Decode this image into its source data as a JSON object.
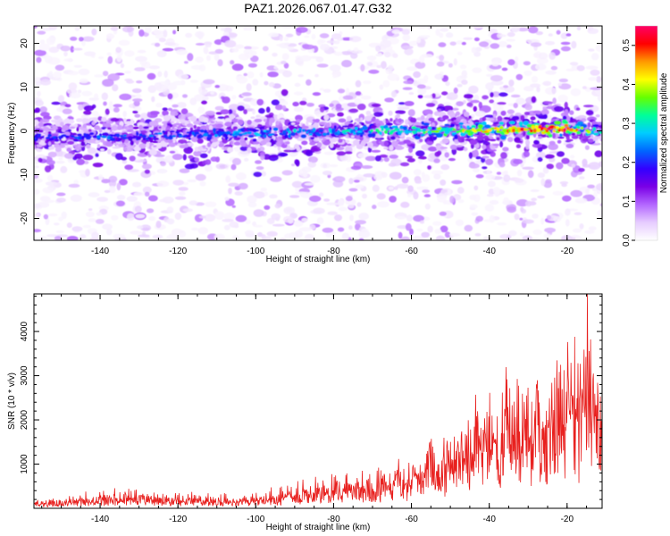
{
  "title": "PAZ1.2026.067.01.47.G32",
  "chart_data": [
    {
      "type": "heatmap",
      "xlabel": "Height of straight line (km)",
      "ylabel": "Frequency (Hz)",
      "xlim": [
        -157,
        -11
      ],
      "ylim": [
        -25,
        24
      ],
      "xticks": [
        -140,
        -120,
        -100,
        -80,
        -60,
        -40,
        -20
      ],
      "yticks": [
        -20,
        -10,
        0,
        10,
        20
      ],
      "colorbar": {
        "label": "Normalized spectral amplitude",
        "range": [
          0,
          0.55
        ],
        "ticks": [
          0.0,
          0.1,
          0.2,
          0.3,
          0.4,
          0.5
        ],
        "colormap": [
          "#ffffff",
          "#e6ccff",
          "#b366ff",
          "#7a00e6",
          "#3300ff",
          "#0066ff",
          "#00ccff",
          "#00ff99",
          "#66ff00",
          "#ffff00",
          "#ff9900",
          "#ff0000",
          "#ff0066"
        ]
      },
      "band_center_hz": [
        {
          "x": -155,
          "y": -1.5
        },
        {
          "x": -100,
          "y": -0.5
        },
        {
          "x": -60,
          "y": 0
        },
        {
          "x": -20,
          "y": 0.5
        },
        {
          "x": -12,
          "y": 0
        }
      ],
      "band_halfwidth_hz": 4,
      "band_peak_amplitude_by_height": [
        {
          "x": -155,
          "a": 0.22
        },
        {
          "x": -110,
          "a": 0.24
        },
        {
          "x": -70,
          "a": 0.3
        },
        {
          "x": -45,
          "a": 0.4
        },
        {
          "x": -22,
          "a": 0.55
        },
        {
          "x": -12,
          "a": 0.3
        }
      ]
    },
    {
      "type": "line",
      "xlabel": "Height of straight line (km)",
      "ylabel": "SNR (10 * v/v)",
      "xlim": [
        -157,
        -11
      ],
      "ylim": [
        0,
        4850
      ],
      "xticks": [
        -140,
        -120,
        -100,
        -80,
        -60,
        -40,
        -20
      ],
      "yticks": [
        1000,
        2000,
        3000,
        4000
      ],
      "series": [
        {
          "name": "SNR",
          "color": "#e8201e",
          "x": [
            -157,
            -150,
            -145,
            -140,
            -135,
            -130,
            -125,
            -120,
            -115,
            -110,
            -105,
            -100,
            -95,
            -90,
            -85,
            -80,
            -75,
            -70,
            -65,
            -60,
            -57,
            -55,
            -53,
            -50,
            -47,
            -45,
            -42,
            -40,
            -38,
            -35,
            -32,
            -30,
            -28,
            -26,
            -24,
            -22,
            -20,
            -18,
            -16,
            -14,
            -13,
            -12,
            -11
          ],
          "values": [
            150,
            220,
            280,
            350,
            400,
            380,
            330,
            300,
            280,
            260,
            270,
            330,
            420,
            500,
            560,
            650,
            720,
            780,
            880,
            980,
            1180,
            1700,
            1350,
            1600,
            1900,
            2100,
            2350,
            2500,
            2650,
            2950,
            2600,
            2800,
            3000,
            2750,
            3200,
            3500,
            3300,
            3700,
            3100,
            4850,
            3800,
            3400,
            2400
          ]
        }
      ]
    }
  ]
}
